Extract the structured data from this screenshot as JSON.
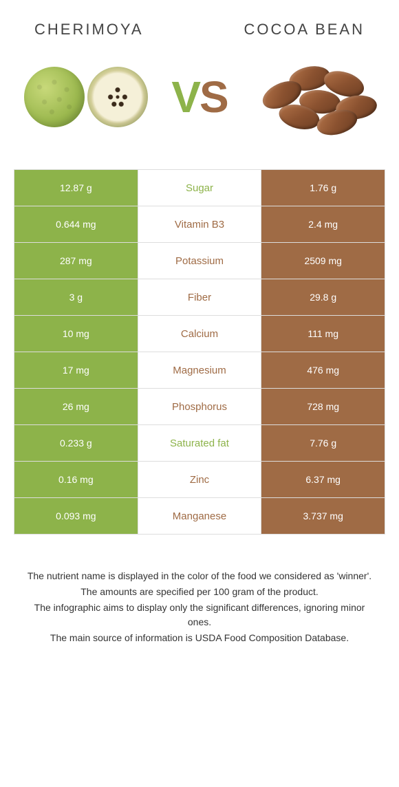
{
  "header": {
    "left_title": "CHERIMOYA",
    "right_title": "COCOA BEAN"
  },
  "vs": {
    "v": "V",
    "s": "S"
  },
  "colors": {
    "left": "#8db34a",
    "right": "#9f6b45",
    "mid_bg": "#ffffff"
  },
  "rows": [
    {
      "nutrient": "Sugar",
      "left": "12.87 g",
      "right": "1.76 g",
      "winner": "left"
    },
    {
      "nutrient": "Vitamin B3",
      "left": "0.644 mg",
      "right": "2.4 mg",
      "winner": "right"
    },
    {
      "nutrient": "Potassium",
      "left": "287 mg",
      "right": "2509 mg",
      "winner": "right"
    },
    {
      "nutrient": "Fiber",
      "left": "3 g",
      "right": "29.8 g",
      "winner": "right"
    },
    {
      "nutrient": "Calcium",
      "left": "10 mg",
      "right": "111 mg",
      "winner": "right"
    },
    {
      "nutrient": "Magnesium",
      "left": "17 mg",
      "right": "476 mg",
      "winner": "right"
    },
    {
      "nutrient": "Phosphorus",
      "left": "26 mg",
      "right": "728 mg",
      "winner": "right"
    },
    {
      "nutrient": "Saturated fat",
      "left": "0.233 g",
      "right": "7.76 g",
      "winner": "left"
    },
    {
      "nutrient": "Zinc",
      "left": "0.16 mg",
      "right": "6.37 mg",
      "winner": "right"
    },
    {
      "nutrient": "Manganese",
      "left": "0.093 mg",
      "right": "3.737 mg",
      "winner": "right"
    }
  ],
  "footnotes": [
    "The nutrient name is displayed in the color of the food we considered as 'winner'.",
    "The amounts are specified per 100 gram of the product.",
    "The infographic aims to display only the significant differences, ignoring minor ones.",
    "The main source of information is USDA Food Composition Database."
  ]
}
